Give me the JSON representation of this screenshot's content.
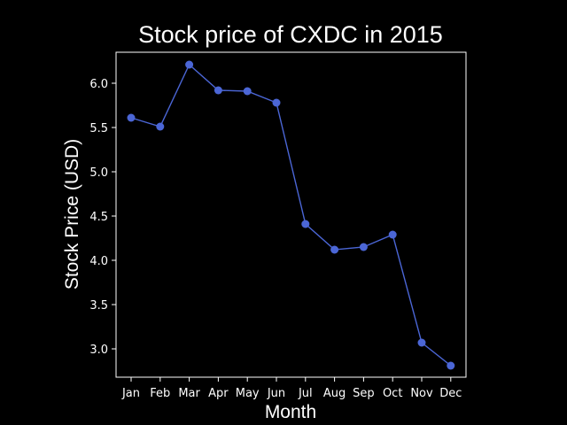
{
  "chart_data": {
    "type": "line",
    "title": "Stock price of CXDC in 2015",
    "xlabel": "Month",
    "ylabel": "Stock Price (USD)",
    "categories": [
      "Jan",
      "Feb",
      "Mar",
      "Apr",
      "May",
      "Jun",
      "Jul",
      "Aug",
      "Sep",
      "Oct",
      "Nov",
      "Dec"
    ],
    "values": [
      5.61,
      5.51,
      6.21,
      5.92,
      5.91,
      5.78,
      4.41,
      4.12,
      4.15,
      4.29,
      3.07,
      2.81
    ],
    "ylim": [
      2.68,
      6.35
    ],
    "yticks": [
      3.0,
      3.5,
      4.0,
      4.5,
      5.0,
      5.5,
      6.0
    ],
    "ytick_labels": [
      "3.0",
      "3.5",
      "4.0",
      "4.5",
      "5.0",
      "5.5",
      "6.0"
    ],
    "grid": false,
    "line_color": "#4b66d6",
    "marker": "circle",
    "background": "#000000",
    "axes_color": "#ffffff",
    "text_color": "#ffffff"
  }
}
